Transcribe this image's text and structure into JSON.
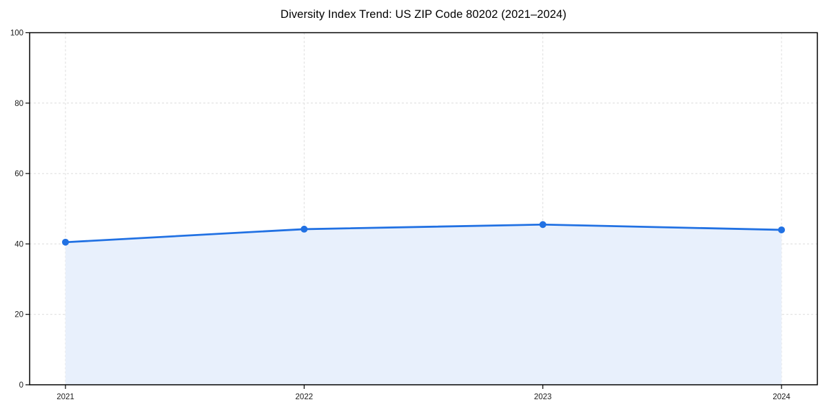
{
  "page": {
    "background": "#ffffff"
  },
  "chart_data": {
    "type": "area",
    "title": "Diversity Index Trend: US ZIP Code 80202 (2021–2024)",
    "categories": [
      "2021",
      "2022",
      "2023",
      "2024"
    ],
    "x": [
      2021,
      2022,
      2023,
      2024
    ],
    "series": [
      {
        "name": "Diversity Index",
        "values": [
          40.5,
          44.2,
          45.5,
          44.0
        ]
      }
    ],
    "xlabel": "",
    "ylabel": "",
    "ylim": [
      0,
      100
    ],
    "yticks": [
      0,
      20,
      40,
      60,
      80,
      100
    ],
    "grid": true,
    "grid_style": "dashed",
    "legend_position": "none",
    "colors": {
      "line": "#2171E3",
      "marker": "#2171E3",
      "fill": "#E8F0FC",
      "grid": "#DBDBDB",
      "frame": "#000000",
      "tick": "#000000",
      "tick_label": "#1A1A1A",
      "title": "#000000"
    }
  }
}
